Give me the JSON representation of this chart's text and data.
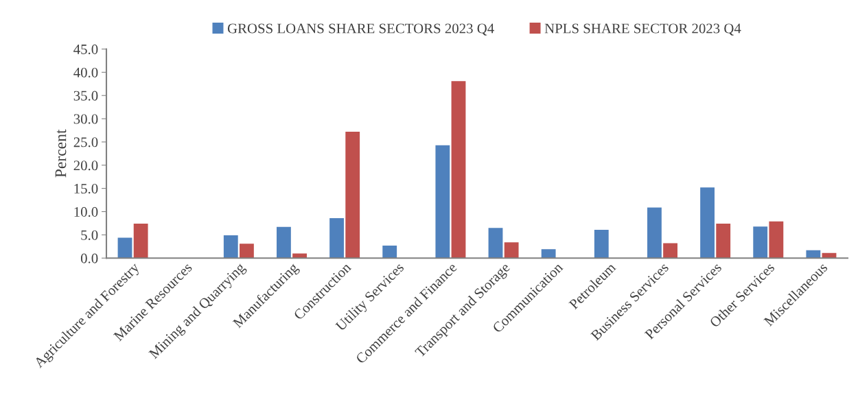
{
  "chart_data": {
    "type": "bar",
    "ylabel": "Percent",
    "categories": [
      "Agriculture and Forestry",
      "Marine Resources",
      "Mining and Quarrying",
      "Manufacturing",
      "Construction",
      "Utility Services",
      "Commerce and Finance",
      "Transport and Storage",
      "Communication",
      "Petroleum",
      "Business Services",
      "Personal Services",
      "Other Services",
      "Miscellaneous"
    ],
    "series": [
      {
        "name": "GROSS LOANS SHARE SECTORS 2023 Q4",
        "color": "#4f81bd",
        "values": [
          4.4,
          0,
          4.9,
          6.7,
          8.6,
          2.7,
          24.3,
          6.5,
          1.9,
          6.1,
          10.9,
          15.2,
          6.8,
          1.7
        ]
      },
      {
        "name": "NPLS SHARE SECTOR 2023 Q4",
        "color": "#c0504d",
        "values": [
          7.4,
          0,
          3.1,
          1.0,
          27.2,
          0,
          38.1,
          3.4,
          0,
          0,
          3.2,
          7.4,
          7.9,
          1.1
        ]
      }
    ],
    "ylim": [
      0,
      45
    ],
    "yticks": [
      {
        "value": 0,
        "label": "0.0"
      },
      {
        "value": 5,
        "label": "5.0"
      },
      {
        "value": 10,
        "label": "10.0"
      },
      {
        "value": 15,
        "label": "15.0"
      },
      {
        "value": 20,
        "label": "20.0"
      },
      {
        "value": 25,
        "label": "25.0"
      },
      {
        "value": 30,
        "label": "30.0"
      },
      {
        "value": 35,
        "label": "35.0"
      },
      {
        "value": 40,
        "label": "40.0"
      },
      {
        "value": 45,
        "label": "45.0"
      }
    ],
    "grid": false,
    "legend": "top"
  }
}
